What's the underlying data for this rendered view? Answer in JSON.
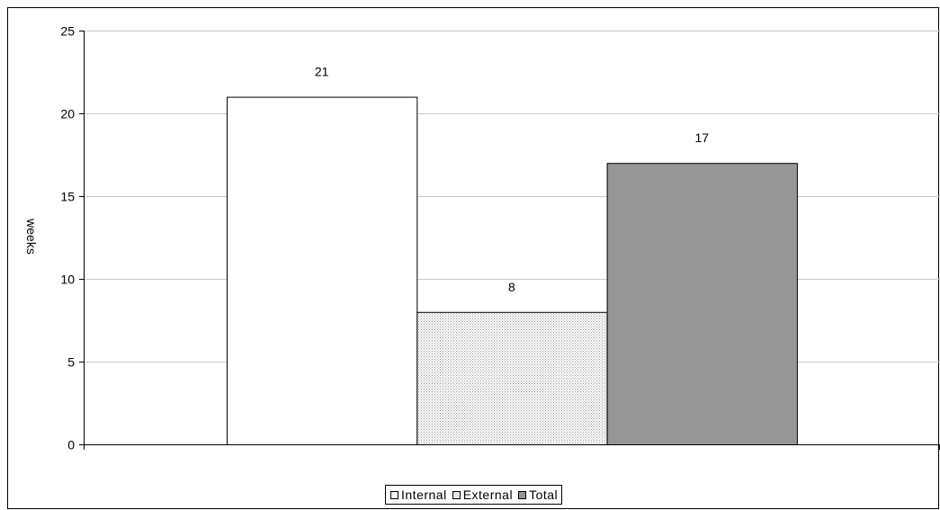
{
  "chart_data": {
    "type": "bar",
    "categories": [
      ""
    ],
    "series": [
      {
        "name": "Internal",
        "values": [
          21
        ],
        "color": "#ffffff",
        "pattern": "none"
      },
      {
        "name": "External",
        "values": [
          8
        ],
        "color": "#e6e6e6",
        "pattern": "dotted"
      },
      {
        "name": "Total",
        "values": [
          17
        ],
        "color": "#969696",
        "pattern": "none"
      }
    ],
    "title": "",
    "xlabel": "",
    "ylabel": "weeks",
    "ylim": [
      0,
      25
    ],
    "yticks": [
      0,
      5,
      10,
      15,
      20,
      25
    ],
    "grid": true,
    "legend_position": "bottom",
    "data_labels": true
  }
}
